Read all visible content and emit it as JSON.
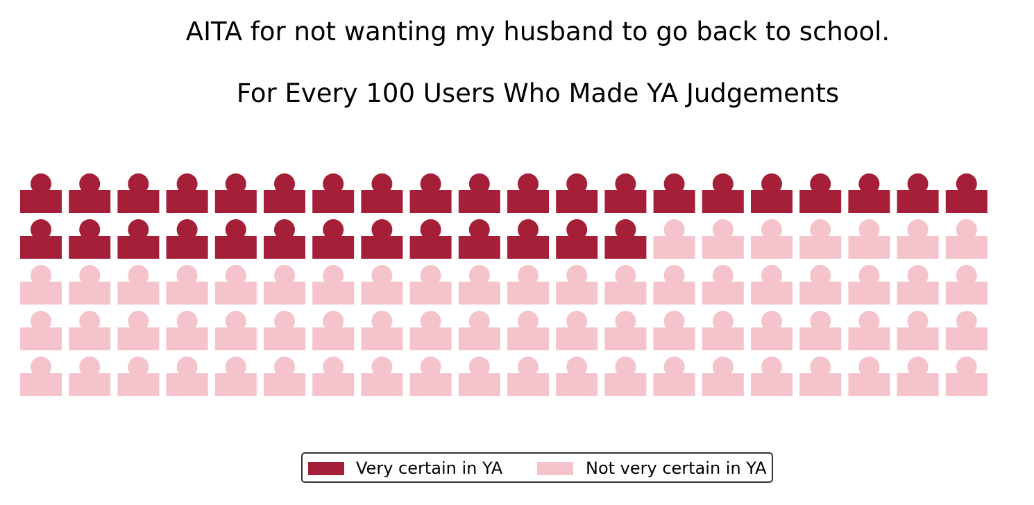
{
  "chart_data": {
    "type": "waffle",
    "title": "AITA for not wanting my husband to go back to school.",
    "subtitle": "For Every 100 Users Who Made YA Judgements",
    "rows": 5,
    "columns": 20,
    "icon": "person-icon",
    "series": [
      {
        "name": "Very certain in YA",
        "value": 33,
        "color": "#a51f38"
      },
      {
        "name": "Not very certain in YA",
        "value": 67,
        "color": "#f4c3cc"
      }
    ],
    "legend_position": "bottom-center"
  }
}
